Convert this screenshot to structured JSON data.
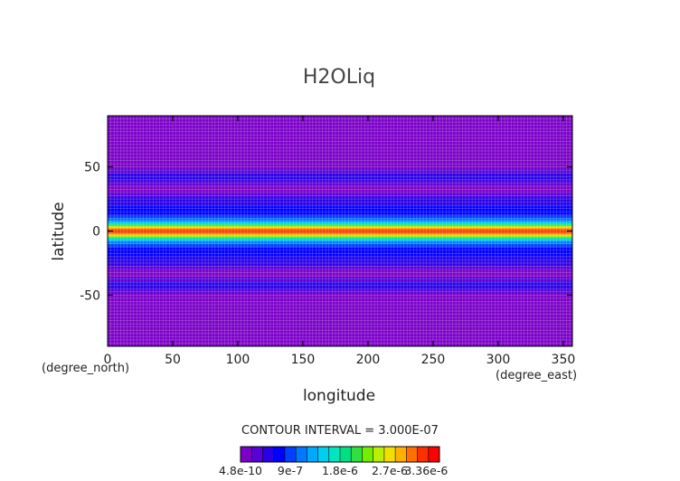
{
  "chart_data": {
    "type": "heatmap",
    "title": "H2OLiq",
    "xlabel": "longitude",
    "ylabel": "latitude",
    "x_unit": "(degree_east)",
    "y_unit": "(degree_north)",
    "xlim": [
      0,
      357
    ],
    "ylim": [
      -90,
      90
    ],
    "x_ticks": [
      0,
      50,
      100,
      150,
      200,
      250,
      300,
      350
    ],
    "y_ticks": [
      -50,
      0,
      50
    ],
    "grid": true,
    "contour_interval_text": "CONTOUR INTERVAL = 3.000E-07",
    "colorbar": {
      "labels": [
        "4.8e-10",
        "9e-7",
        "1.8e-6",
        "2.7e-6",
        "3.36e-6"
      ],
      "label_values": [
        4.8e-10,
        9e-07,
        1.8e-06,
        2.7e-06,
        3.36e-06
      ],
      "min": 4.8e-10,
      "max": 3.6e-06,
      "colors": [
        "#7b00c8",
        "#5a00d8",
        "#2a00e6",
        "#0000ff",
        "#0040ff",
        "#0078ff",
        "#00a8ff",
        "#00d0f0",
        "#00e6c0",
        "#00e080",
        "#30e040",
        "#70f000",
        "#b8f000",
        "#f0e000",
        "#ffb000",
        "#ff7000",
        "#ff3000",
        "#ff0000"
      ]
    },
    "zonal_profile": {
      "latitude": [
        -90,
        -80,
        -70,
        -60,
        -50,
        -46,
        -42,
        -38,
        -34,
        -30,
        -26,
        -20,
        -14,
        -8,
        -5,
        -3,
        -1,
        0,
        1,
        3,
        5,
        8,
        14,
        20,
        26,
        30,
        34,
        38,
        42,
        46,
        50,
        60,
        70,
        80,
        90
      ],
      "value": [
        1e-08,
        2e-08,
        5e-08,
        1e-07,
        1.6e-07,
        3.5e-07,
        6e-07,
        3e-07,
        1.2e-07,
        2e-07,
        4.5e-07,
        6e-07,
        6.5e-07,
        1.2e-06,
        2e-06,
        2.8e-06,
        3.2e-06,
        3.36e-06,
        3.2e-06,
        2.8e-06,
        2e-06,
        1.2e-06,
        6.5e-07,
        6e-07,
        4.5e-07,
        2e-07,
        1.2e-07,
        3e-07,
        6e-07,
        3.5e-07,
        1.6e-07,
        1e-07,
        5e-08,
        2e-08,
        1e-08
      ]
    }
  }
}
